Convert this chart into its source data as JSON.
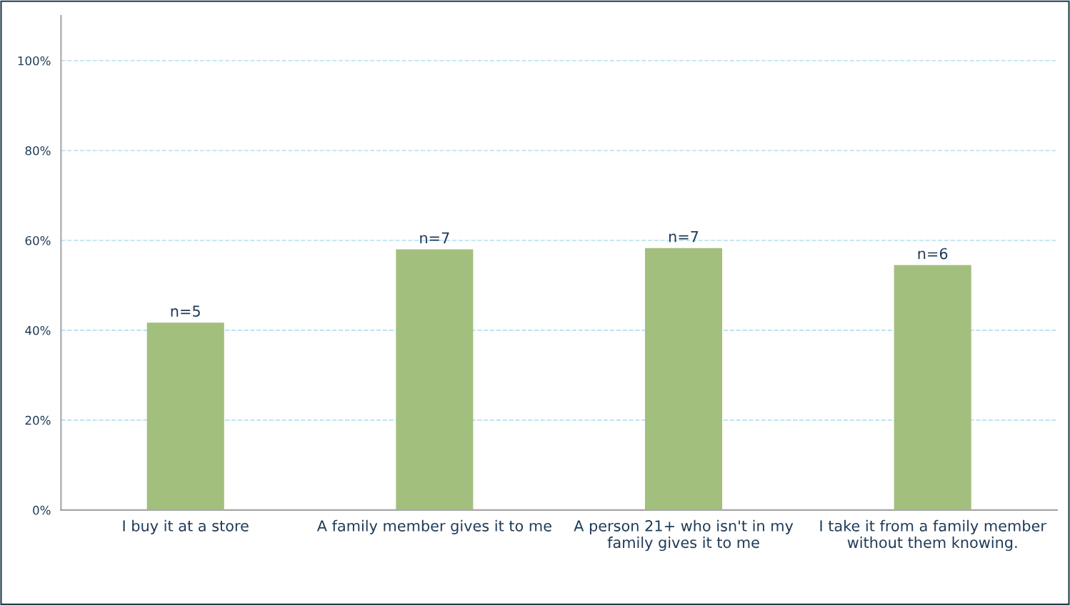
{
  "chart_data": {
    "type": "bar",
    "categories": [
      "I buy it at a store",
      "A family member gives it to me",
      "A person 21+ who isn't in my\nfamily gives it to me",
      "I take it from a family member\nwithout them knowing."
    ],
    "values": [
      41.7,
      58.0,
      58.3,
      54.5
    ],
    "annotations": [
      {
        "text": "n=5",
        "x": "I buy it at a store",
        "y": 41.7
      },
      {
        "text": "n=7",
        "x": "A family member gives it to me",
        "y": 58.0
      },
      {
        "text": "n=7",
        "x": "A person 21+ who isn't in my\nfamily gives it to me",
        "y": 58.3
      },
      {
        "text": "n=6",
        "x": "I take it from a family member\nwithout them knowing.",
        "y": 54.5
      }
    ],
    "color": "#a2bf7e",
    "ylim": [
      0,
      110
    ],
    "yticks": [
      {
        "value": 0,
        "label": "0%"
      },
      {
        "value": 20,
        "label": "20%"
      },
      {
        "value": 40,
        "label": "40%"
      },
      {
        "value": 60,
        "label": "60%"
      },
      {
        "value": 80,
        "label": "80%"
      },
      {
        "value": 100,
        "label": "100%"
      }
    ],
    "grid": "y",
    "line_style": "dashed"
  }
}
